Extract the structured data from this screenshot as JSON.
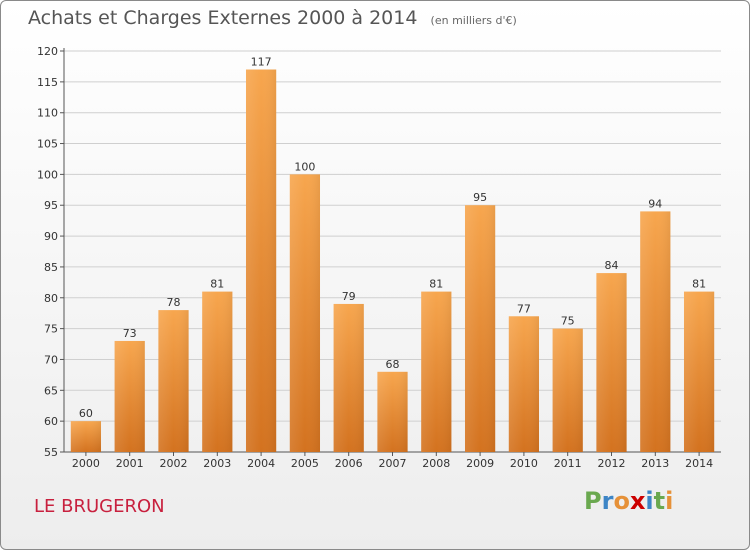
{
  "chart_data": {
    "type": "bar",
    "title": "Achats et Charges Externes 2000 à 2014",
    "subtitle": "(en milliers d'€)",
    "categories": [
      "2000",
      "2001",
      "2002",
      "2003",
      "2004",
      "2005",
      "2006",
      "2007",
      "2008",
      "2009",
      "2010",
      "2011",
      "2012",
      "2013",
      "2014"
    ],
    "values": [
      60,
      73,
      78,
      81,
      117,
      100,
      79,
      68,
      81,
      95,
      77,
      75,
      84,
      94,
      81
    ],
    "ylim": [
      55,
      120
    ],
    "yticks": [
      55,
      60,
      65,
      70,
      75,
      80,
      85,
      90,
      95,
      100,
      105,
      110,
      115,
      120
    ],
    "grid": true,
    "bar_color": "#f0943a"
  },
  "footer": {
    "commune": "LE BRUGERON",
    "logo": "Proxiti"
  },
  "colors": {
    "commune": "#c8203e",
    "logo_letters": [
      "#6aa84f",
      "#3d85c6",
      "#e69138",
      "#cc0000",
      "#3d85c6",
      "#6aa84f",
      "#e69138"
    ]
  }
}
